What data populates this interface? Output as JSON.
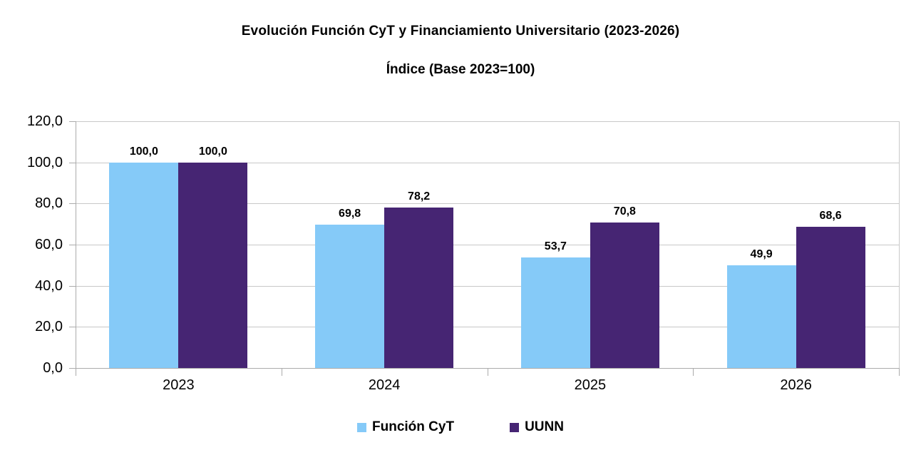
{
  "chart_data": {
    "type": "bar",
    "title": "Evolución Función CyT y Financiamiento Universitario (2023-2026)",
    "subtitle": "Índice (Base 2023=100)",
    "categories": [
      "2023",
      "2024",
      "2025",
      "2026"
    ],
    "series": [
      {
        "name": "Función CyT",
        "color": "#85CAF8",
        "values": [
          100.0,
          69.8,
          53.7,
          49.9
        ],
        "value_labels": [
          "100,0",
          "69,8",
          "53,7",
          "49,9"
        ]
      },
      {
        "name": "UUNN",
        "color": "#462573",
        "values": [
          100.0,
          78.2,
          70.8,
          68.6
        ],
        "value_labels": [
          "100,0",
          "78,2",
          "70,8",
          "68,6"
        ]
      }
    ],
    "y_axis": {
      "min": 0,
      "max": 120,
      "step": 20,
      "tick_labels": [
        "0,0",
        "20,0",
        "40,0",
        "60,0",
        "80,0",
        "100,0",
        "120,0"
      ]
    },
    "grid": true,
    "legend_position": "bottom"
  },
  "colors": {
    "series_blue": "#85CAF8",
    "series_purple": "#462573",
    "gridline": "#C8C8C8",
    "axis": "#ABABAB",
    "text": "#000000",
    "background": "#FFFFFF"
  }
}
